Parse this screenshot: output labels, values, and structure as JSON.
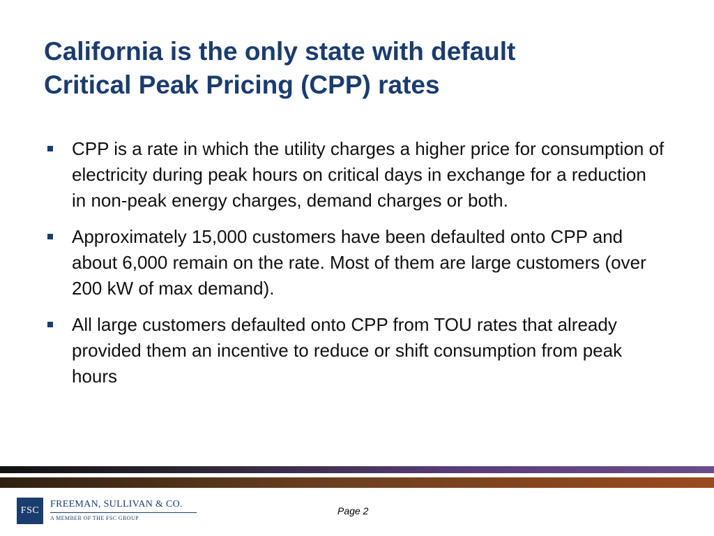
{
  "slide": {
    "title_line1": "California is the only state with default",
    "title_line2": "Critical Peak Pricing (CPP) rates",
    "bullets": [
      {
        "text": "CPP is a rate in which the utility charges a higher price for consumption of electricity during peak hours on critical days in exchange for a reduction in non-peak energy charges, demand charges or both."
      },
      {
        "text": "Approximately 15,000 customers have been defaulted onto CPP and about 6,000 remain on the rate.  Most of them are large customers (over 200 kW of max demand)."
      },
      {
        "text": "All large customers defaulted onto CPP from TOU rates that already provided them an incentive to reduce or shift consumption from peak hours"
      }
    ]
  },
  "footer": {
    "logo": {
      "abbrev": "FSC",
      "name": "FREEMAN, SULLIVAN & CO.",
      "tagline": "A MEMBER OF THE FSC GROUP"
    },
    "page_label": "Page 2"
  },
  "colors": {
    "title": "#1b3c6e",
    "bullet": "#1b3c6e",
    "bar_top": "#5a3d7a",
    "bar_bottom": "#9b4a1f"
  }
}
